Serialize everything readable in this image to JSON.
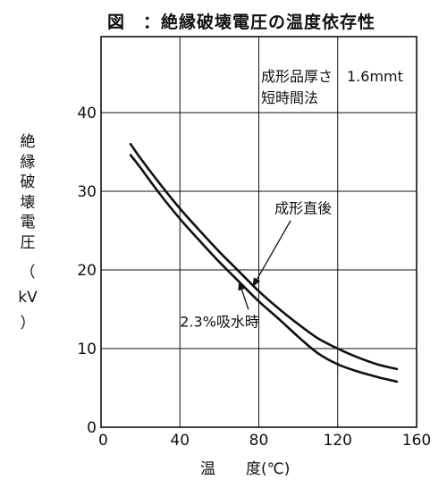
{
  "figure": {
    "title": "図　：絶縁破壊電圧の温度依存性",
    "ylabel_chars": [
      "絶",
      "縁",
      "破",
      "壊",
      "電",
      "圧",
      "（",
      "kV",
      "）"
    ],
    "xlabel": "温　　度(℃)",
    "conditions": [
      "成形品厚さ　1.6mmt",
      "短時間法"
    ]
  },
  "chart_data": {
    "type": "line",
    "title": "図　：絶縁破壊電圧の温度依存性",
    "xlabel": "温　　度(℃)",
    "ylabel": "絶縁破壊電圧（kV）",
    "xlim": [
      0,
      160
    ],
    "ylim": [
      0,
      45
    ],
    "x_ticks": [
      "0",
      "40",
      "80",
      "120",
      "160"
    ],
    "y_ticks": [
      "0",
      "10",
      "20",
      "30",
      "40"
    ],
    "grid": true,
    "series": [
      {
        "name": "成形直後",
        "x": [
          15,
          20,
          30,
          40,
          50,
          60,
          70,
          80,
          90,
          100,
          110,
          120,
          130,
          140,
          150
        ],
        "values": [
          36.0,
          34.2,
          30.9,
          27.8,
          25.0,
          22.3,
          19.8,
          17.3,
          15.1,
          13.1,
          11.3,
          10.0,
          8.9,
          8.0,
          7.4
        ]
      },
      {
        "name": "2.3%吸水時",
        "x": [
          15,
          20,
          30,
          40,
          50,
          60,
          70,
          80,
          90,
          100,
          110,
          120,
          130,
          140,
          150
        ],
        "values": [
          34.6,
          33.0,
          29.6,
          26.5,
          23.7,
          21.0,
          18.5,
          16.0,
          13.8,
          11.5,
          9.4,
          8.0,
          7.1,
          6.4,
          5.8
        ]
      }
    ],
    "annotations": [
      {
        "text": "成形直後",
        "x": 88,
        "y": 27.2,
        "points_to_series": 0,
        "target_x": 77,
        "target_y": 17.9
      },
      {
        "text": "2.3%吸水時",
        "x": 40,
        "y": 12.8,
        "points_to_series": 1,
        "target_x": 70,
        "target_y": 18.5
      }
    ]
  }
}
